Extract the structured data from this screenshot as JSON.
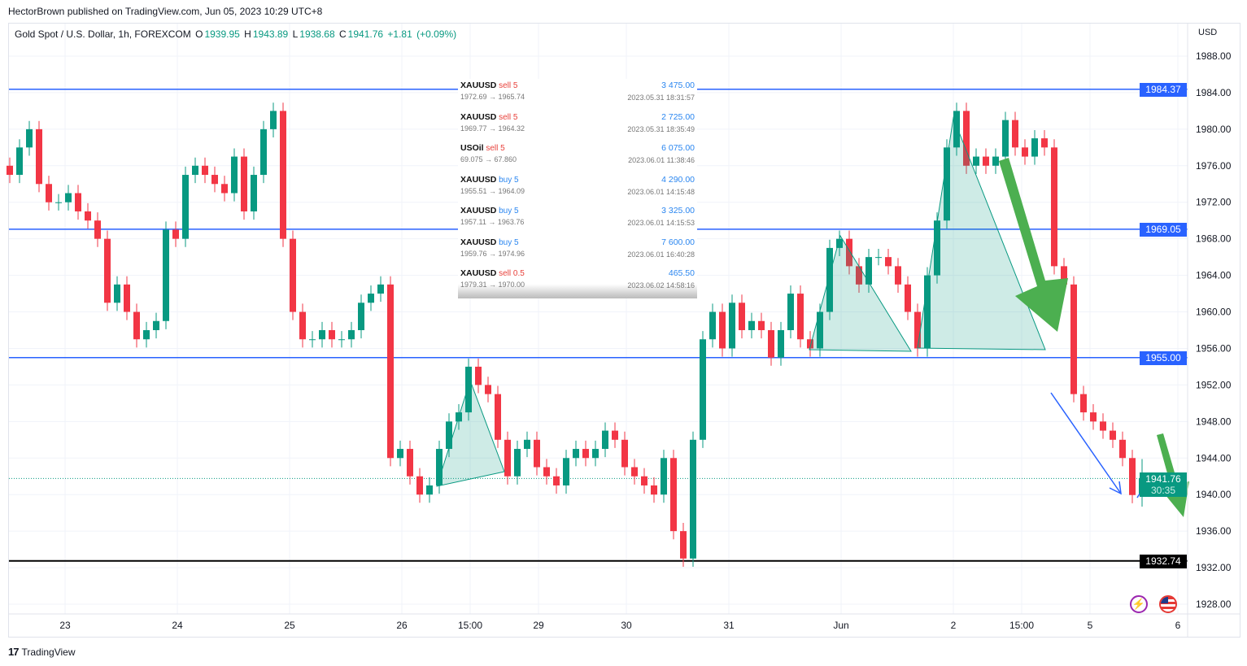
{
  "publisher_line": "HectorBrown published on TradingView.com, Jun 05, 2023 10:29 UTC+8",
  "legend": {
    "symbol": "Gold Spot / U.S. Dollar, 1h, FOREXCOM",
    "o_label": "O",
    "o": "1939.95",
    "h_label": "H",
    "h": "1943.89",
    "l_label": "L",
    "l": "1938.68",
    "c_label": "C",
    "c": "1941.76",
    "change": "+1.81",
    "change_pct": "(+0.09%)"
  },
  "currency": "USD",
  "footer": {
    "logo": "TradingView"
  },
  "current_price": {
    "value": "1941.76",
    "countdown": "30:35",
    "color": "#089981"
  },
  "trades": [
    {
      "symbol": "XAUUSD",
      "side": "sell 5",
      "side_type": "sell",
      "profit": "3 475.00",
      "prices": "1972.69 → 1965.74",
      "time": "2023.05.31 18:31:57"
    },
    {
      "symbol": "XAUUSD",
      "side": "sell 5",
      "side_type": "sell",
      "profit": "2 725.00",
      "prices": "1969.77 → 1964.32",
      "time": "2023.05.31 18:35:49"
    },
    {
      "symbol": "USOil",
      "side": "sell 5",
      "side_type": "sell",
      "profit": "6 075.00",
      "prices": "69.075 → 67.860",
      "time": "2023.06.01 11:38:46"
    },
    {
      "symbol": "XAUUSD",
      "side": "buy 5",
      "side_type": "buy",
      "profit": "4 290.00",
      "prices": "1955.51 → 1964.09",
      "time": "2023.06.01 14:15:48"
    },
    {
      "symbol": "XAUUSD",
      "side": "buy 5",
      "side_type": "buy",
      "profit": "3 325.00",
      "prices": "1957.11 → 1963.76",
      "time": "2023.06.01 14:15:53"
    },
    {
      "symbol": "XAUUSD",
      "side": "buy 5",
      "side_type": "buy",
      "profit": "7 600.00",
      "prices": "1959.76 → 1974.96",
      "time": "2023.06.01 16:40:28"
    },
    {
      "symbol": "XAUUSD",
      "side": "sell 0.5",
      "side_type": "sell",
      "profit": "465.50",
      "prices": "1979.31 → 1970.00",
      "time": "2023.06.02 14:58:16"
    }
  ],
  "chart_data": {
    "type": "candlestick",
    "ylim": [
      1928,
      1988
    ],
    "y_ticks": [
      1928,
      1932,
      1936,
      1940,
      1944,
      1948,
      1952,
      1956,
      1960,
      1964,
      1968,
      1972,
      1976,
      1980,
      1984,
      1988
    ],
    "x_tick_labels": [
      "23",
      "24",
      "25",
      "26",
      "15:00",
      "29",
      "30",
      "31",
      "Jun",
      "2",
      "15:00",
      "5",
      "6"
    ],
    "grid": true,
    "colors": {
      "up": "#089981",
      "down": "#f23645",
      "hline": "#2962ff",
      "support": "#000000"
    },
    "closes": [
      1975,
      1978,
      1980,
      1974,
      1972,
      1972,
      1973,
      1971,
      1970,
      1968,
      1961,
      1963,
      1960,
      1957,
      1958,
      1959,
      1969,
      1968,
      1975,
      1976,
      1975,
      1974,
      1973,
      1977,
      1971,
      1975,
      1980,
      1982,
      1968,
      1960,
      1957,
      1957,
      1958,
      1957,
      1957,
      1958,
      1961,
      1962,
      1963,
      1944,
      1945,
      1942,
      1940,
      1941,
      1945,
      1948,
      1949,
      1954,
      1952,
      1951,
      1946,
      1942,
      1945,
      1946,
      1943,
      1942,
      1941,
      1944,
      1945,
      1944,
      1945,
      1947,
      1946,
      1943,
      1942,
      1941,
      1940,
      1944,
      1936,
      1933,
      1946,
      1957,
      1960,
      1956,
      1961,
      1958,
      1959,
      1958,
      1955,
      1958,
      1962,
      1957,
      1956,
      1960,
      1967,
      1968,
      1965,
      1963,
      1966,
      1966,
      1965,
      1963,
      1960,
      1956,
      1964,
      1970,
      1978,
      1982,
      1976,
      1977,
      1976,
      1977,
      1981,
      1978,
      1977,
      1979,
      1978,
      1965,
      1963,
      1951,
      1949,
      1948,
      1947,
      1946,
      1944,
      1939.95,
      1941.76
    ],
    "last_candle": {
      "open": 1939.95,
      "high": 1943.89,
      "low": 1938.68,
      "close": 1941.76
    },
    "horizontal_levels": [
      {
        "price": "1984.37",
        "color": "#2962ff"
      },
      {
        "price": "1969.05",
        "color": "#2962ff"
      },
      {
        "price": "1955.00",
        "color": "#2962ff"
      },
      {
        "price": "1932.74",
        "color": "#000000"
      }
    ]
  }
}
